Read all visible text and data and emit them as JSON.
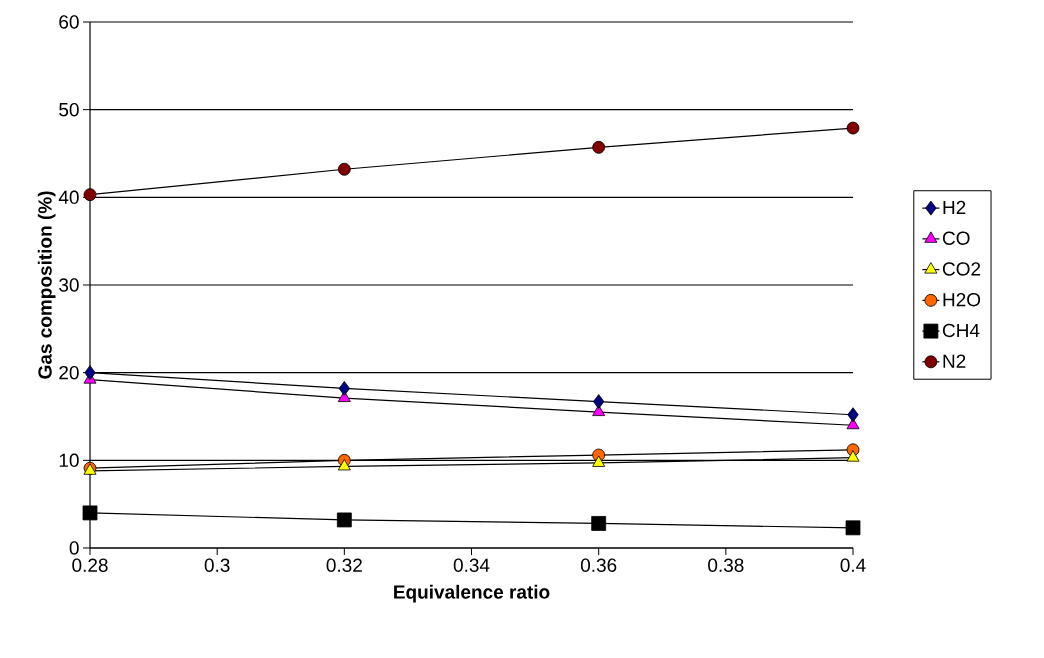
{
  "chart_data": {
    "type": "line",
    "xlabel": "Equivalence ratio",
    "ylabel": "Gas composition (%)",
    "x": [
      0.28,
      0.32,
      0.36,
      0.4
    ],
    "series": [
      {
        "name": "H2",
        "color": "#000080",
        "marker": "diamond",
        "values": [
          20.0,
          18.2,
          16.7,
          15.2
        ]
      },
      {
        "name": "CO",
        "color": "#ff00ff",
        "marker": "triangle",
        "values": [
          19.2,
          17.1,
          15.5,
          14.0
        ]
      },
      {
        "name": "CO2",
        "color": "#ffff00",
        "marker": "triangle",
        "values": [
          8.8,
          9.3,
          9.7,
          10.3
        ]
      },
      {
        "name": "H2O",
        "color": "#ff6600",
        "marker": "circle",
        "values": [
          9.1,
          10.0,
          10.6,
          11.2
        ]
      },
      {
        "name": "CH4",
        "color": "#000000",
        "marker": "square",
        "values": [
          4.0,
          3.2,
          2.8,
          2.3
        ]
      },
      {
        "name": "N2",
        "color": "#800000",
        "marker": "circle",
        "values": [
          40.3,
          43.2,
          45.7,
          47.9
        ]
      }
    ],
    "xlim": [
      0.28,
      0.4
    ],
    "xticks": [
      0.28,
      0.3,
      0.32,
      0.34,
      0.36,
      0.38,
      0.4
    ],
    "ylim": [
      0,
      60
    ],
    "yticks": [
      0,
      10,
      20,
      30,
      40,
      50,
      60
    ],
    "grid": "y",
    "legend": "right",
    "line_style": "solid"
  }
}
